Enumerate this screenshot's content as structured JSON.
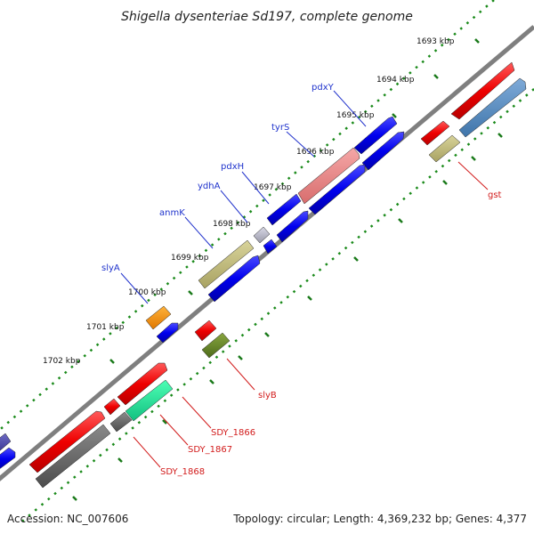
{
  "title": "Shigella dysenteriae Sd197, complete genome",
  "footer": {
    "accession": "Accession: NC_007606",
    "summary": "Topology: circular; Length: 4,369,232 bp; Genes: 4,377"
  },
  "ticks": [
    "1693 kbp",
    "1694 kbp",
    "1695 kbp",
    "1696 kbp",
    "1697 kbp",
    "1698 kbp",
    "1699 kbp",
    "1700 kbp",
    "1701 kbp",
    "1702 kbp"
  ],
  "genes_forward": [
    "pdxY",
    "tyrS",
    "pdxH",
    "ydhA",
    "anmK",
    "slyA"
  ],
  "genes_reverse": [
    "gst",
    "slyB",
    "SDY_1866",
    "SDY_1867",
    "SDY_1868"
  ]
}
